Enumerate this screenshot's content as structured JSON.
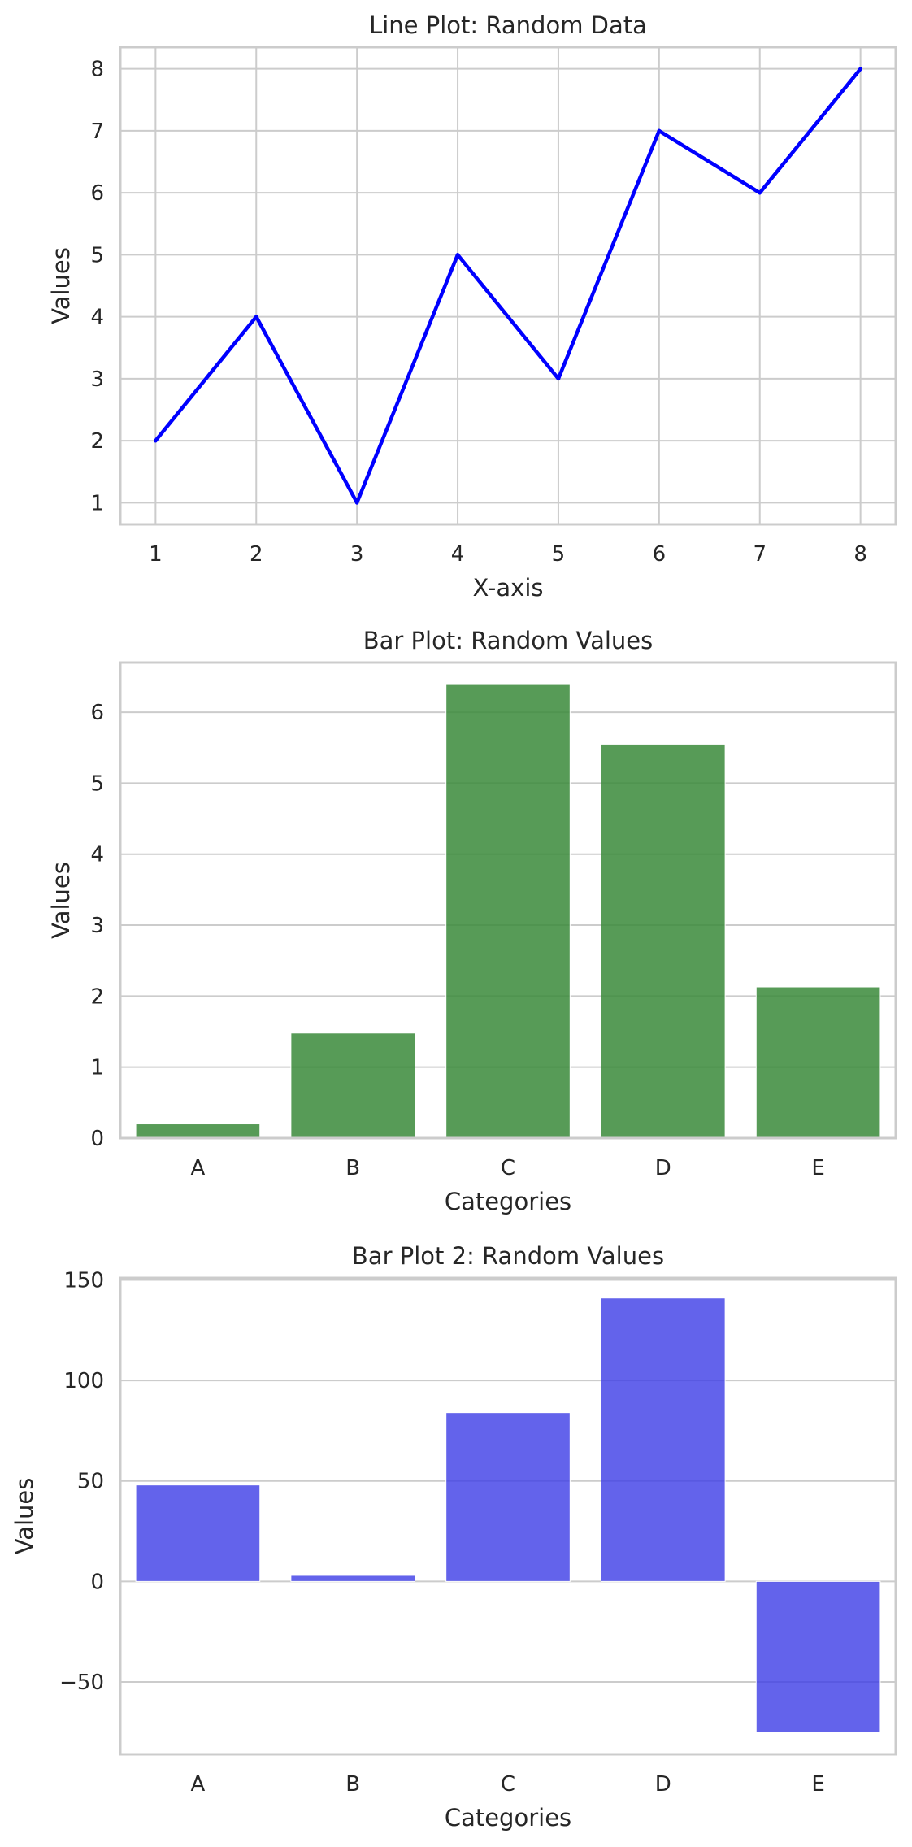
{
  "chart_data": [
    {
      "type": "line",
      "title": "Line Plot: Random Data",
      "xlabel": "X-axis",
      "ylabel": "Values",
      "x": [
        1,
        2,
        3,
        4,
        5,
        6,
        7,
        8
      ],
      "series": [
        {
          "values": [
            2,
            4,
            1,
            5,
            3,
            7,
            6,
            8
          ],
          "color": "#0000ff"
        }
      ],
      "xlim": [
        0.65,
        8.35
      ],
      "ylim": [
        0.65,
        8.35
      ],
      "xticks": [
        1,
        2,
        3,
        4,
        5,
        6,
        7,
        8
      ],
      "yticks": [
        1,
        2,
        3,
        4,
        5,
        6,
        7,
        8
      ],
      "grid": "both"
    },
    {
      "type": "bar",
      "title": "Bar Plot: Random Values",
      "xlabel": "Categories",
      "ylabel": "Values",
      "categories": [
        "A",
        "B",
        "C",
        "D",
        "E"
      ],
      "values": [
        0.2,
        1.48,
        6.39,
        5.55,
        2.13
      ],
      "color": "#3a8a3a",
      "opacity": 0.85,
      "ylim": [
        0,
        6.7
      ],
      "yticks": [
        0,
        1,
        2,
        3,
        4,
        5,
        6
      ],
      "grid": "y"
    },
    {
      "type": "bar",
      "title": "Bar Plot 2: Random Values",
      "xlabel": "Categories",
      "ylabel": "Values",
      "categories": [
        "A",
        "B",
        "C",
        "D",
        "E"
      ],
      "values": [
        48,
        3,
        84,
        141,
        -75
      ],
      "color": "#3c3ce6",
      "opacity": 0.8,
      "ylim": [
        -86,
        151
      ],
      "yticks": [
        -50,
        0,
        50,
        100,
        150
      ],
      "ytick_labels": [
        "−50",
        "0",
        "50",
        "100",
        "150"
      ],
      "grid": "y"
    }
  ]
}
